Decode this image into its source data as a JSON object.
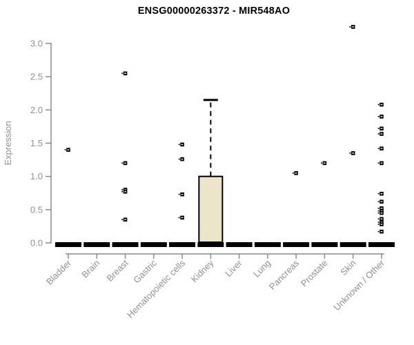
{
  "chart_data": {
    "type": "boxplot",
    "title": "ENSG00000263372 - MIR548AO",
    "ylabel": "Expression",
    "xlabel": "",
    "ylim": [
      0,
      3.0
    ],
    "yticks": [
      "0.0",
      "0.5",
      "1.0",
      "1.5",
      "2.0",
      "2.5",
      "3.0"
    ],
    "grid": false,
    "legend": "none",
    "colors": {
      "box_fill": "#ece5c9",
      "box_border": "#000000",
      "axis": "#8a8a8a",
      "tick_label": "#8f8f8f",
      "point": "#000000",
      "median_bar": "#000000",
      "title": "#000000",
      "background": "#ffffff"
    },
    "categories": [
      "Bladder",
      "Brain",
      "Breast",
      "Gastric",
      "Hematopoietic cells",
      "Kidney",
      "Liver",
      "Lung",
      "Pancreas",
      "Prostate",
      "Skin",
      "Unknown / Other"
    ],
    "series": [
      {
        "category": "Bladder",
        "median": 0,
        "q1": 0,
        "q3": 0,
        "whisker_low": 0,
        "whisker_high": 0,
        "points": [
          1.4
        ]
      },
      {
        "category": "Brain",
        "median": 0,
        "q1": 0,
        "q3": 0,
        "whisker_low": 0,
        "whisker_high": 0,
        "points": []
      },
      {
        "category": "Breast",
        "median": 0,
        "q1": 0,
        "q3": 0,
        "whisker_low": 0,
        "whisker_high": 0,
        "points": [
          2.55,
          1.2,
          0.8,
          0.77,
          0.35
        ]
      },
      {
        "category": "Gastric",
        "median": 0,
        "q1": 0,
        "q3": 0,
        "whisker_low": 0,
        "whisker_high": 0,
        "points": []
      },
      {
        "category": "Hematopoietic cells",
        "median": 0,
        "q1": 0,
        "q3": 0,
        "whisker_low": 0,
        "whisker_high": 0,
        "points": [
          1.48,
          1.26,
          0.73,
          0.38
        ]
      },
      {
        "category": "Kidney",
        "median": 0,
        "q1": 0,
        "q3": 1.0,
        "whisker_low": 0,
        "whisker_high": 2.15,
        "points": []
      },
      {
        "category": "Liver",
        "median": 0,
        "q1": 0,
        "q3": 0,
        "whisker_low": 0,
        "whisker_high": 0,
        "points": []
      },
      {
        "category": "Lung",
        "median": 0,
        "q1": 0,
        "q3": 0,
        "whisker_low": 0,
        "whisker_high": 0,
        "points": []
      },
      {
        "category": "Pancreas",
        "median": 0,
        "q1": 0,
        "q3": 0,
        "whisker_low": 0,
        "whisker_high": 0,
        "points": [
          1.05
        ]
      },
      {
        "category": "Prostate",
        "median": 0,
        "q1": 0,
        "q3": 0,
        "whisker_low": 0,
        "whisker_high": 0,
        "points": [
          1.2
        ]
      },
      {
        "category": "Skin",
        "median": 0,
        "q1": 0,
        "q3": 0,
        "whisker_low": 0,
        "whisker_high": 0,
        "points": [
          3.25,
          1.35
        ]
      },
      {
        "category": "Unknown / Other",
        "median": 0,
        "q1": 0,
        "q3": 0,
        "whisker_low": 0,
        "whisker_high": 0,
        "points": [
          2.08,
          1.9,
          1.72,
          1.64,
          1.42,
          1.2,
          0.74,
          0.62,
          0.52,
          0.48,
          0.45,
          0.36,
          0.31,
          0.28,
          0.17
        ]
      }
    ]
  }
}
